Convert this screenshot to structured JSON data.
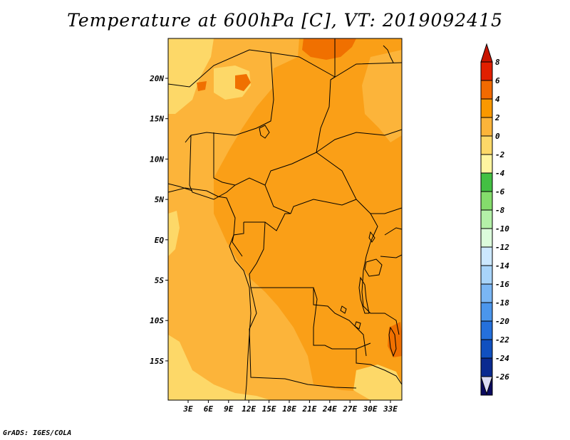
{
  "title": "Temperature at 600hPa [C], VT: 2019092415",
  "footer": "GrADS: IGES/COLA",
  "map": {
    "lon_labels": [
      "3E",
      "6E",
      "9E",
      "12E",
      "15E",
      "18E",
      "21E",
      "24E",
      "27E",
      "30E",
      "33E"
    ],
    "lat_labels": [
      "20N",
      "15N",
      "10N",
      "5N",
      "EQ",
      "5S",
      "10S",
      "15S"
    ]
  },
  "colorbar": {
    "labels": [
      "8",
      "6",
      "4",
      "2",
      "0",
      "-2",
      "-4",
      "-6",
      "-8",
      "-10",
      "-12",
      "-14",
      "-16",
      "-18",
      "-20",
      "-22",
      "-24",
      "-26"
    ],
    "colors": [
      "#e11f00",
      "#f26a00",
      "#fa9800",
      "#fcb43a",
      "#fdd868",
      "#fff5a0",
      "#43c043",
      "#84dc6c",
      "#b4f0a8",
      "#dcfcdc",
      "#cce8ff",
      "#a8d4fa",
      "#7ab6f4",
      "#4b96ec",
      "#2570dc",
      "#1050c0",
      "#0a2a90",
      "#0a0a60"
    ],
    "over_color": "#c81400",
    "under_color": "#dcdcf4"
  },
  "colors": {
    "field_main": "#fa9f17",
    "field_light": "#fcb43a",
    "field_pale": "#fdd868",
    "field_hot": "#f07000"
  }
}
